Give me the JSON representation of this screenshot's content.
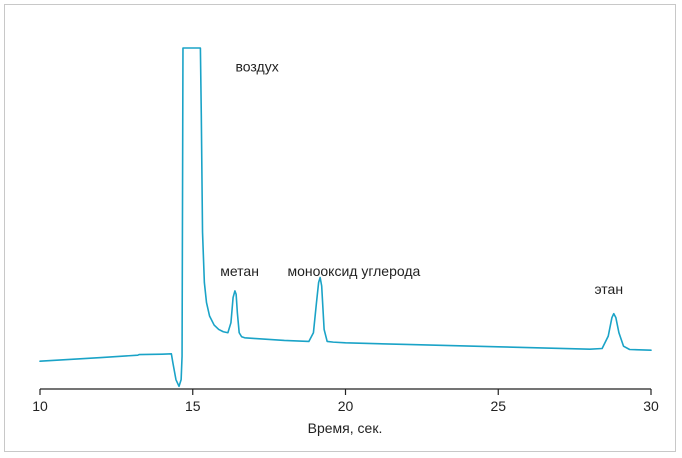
{
  "chart_data": {
    "type": "line",
    "title": "",
    "xlabel": "Время, сек.",
    "ylabel": "",
    "xlim": [
      10,
      30
    ],
    "ylim": [
      0,
      100
    ],
    "x_ticks": [
      10,
      15,
      20,
      25,
      30
    ],
    "grid": false,
    "legend": "none",
    "line_color": "#1aa3c7",
    "series": [
      {
        "x": [
          10.0,
          12.0,
          13.2,
          13.25,
          14.0,
          14.3,
          14.35,
          14.45,
          14.55,
          14.62,
          14.65,
          14.68,
          15.25,
          15.28,
          15.32,
          15.38,
          15.45,
          15.55,
          15.7,
          15.85,
          16.0,
          16.15,
          16.25,
          16.32,
          16.38,
          16.42,
          16.46,
          16.52,
          16.6,
          16.7,
          17.0,
          18.0,
          18.8,
          18.95,
          19.05,
          19.12,
          19.17,
          19.22,
          19.3,
          19.4,
          19.6,
          20.0,
          22.0,
          25.0,
          28.0,
          28.4,
          28.6,
          28.72,
          28.78,
          28.85,
          28.95,
          29.1,
          29.3,
          30.0
        ],
        "y": [
          6.5,
          7.6,
          8.3,
          8.5,
          8.6,
          8.7,
          6.0,
          1.0,
          -1.0,
          1.0,
          8.0,
          100.0,
          100.0,
          80.0,
          45.0,
          30.0,
          24.0,
          20.0,
          17.3,
          16.0,
          15.3,
          15.0,
          18.0,
          25.5,
          27.5,
          26.5,
          21.0,
          15.0,
          13.8,
          13.5,
          13.3,
          12.7,
          12.4,
          15.0,
          24.0,
          30.0,
          31.5,
          29.0,
          16.0,
          12.4,
          12.2,
          12.0,
          11.5,
          10.8,
          10.1,
          10.3,
          14.0,
          19.5,
          20.7,
          19.5,
          15.0,
          11.0,
          10.0,
          9.8
        ]
      }
    ],
    "annotations": [
      {
        "text": "воздух",
        "x": 16.4,
        "y": 93
      },
      {
        "text": "метан",
        "x": 15.9,
        "y": 32
      },
      {
        "text": "монооксид углерода",
        "x": 18.1,
        "y": 32
      },
      {
        "text": "этан",
        "x": 28.15,
        "y": 26.5
      }
    ]
  }
}
